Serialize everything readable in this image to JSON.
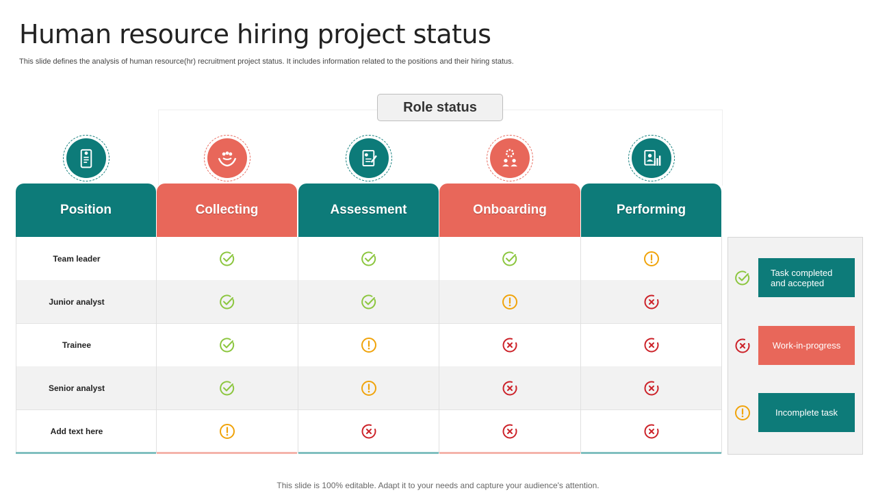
{
  "title": "Human resource hiring project status",
  "subtitle": "This slide defines the analysis of human resource(hr) recruitment project status. It includes information related to the positions and their hiring status.",
  "role_status": "Role status",
  "columns": [
    "Position",
    "Collecting",
    "Assessment",
    "Onboarding",
    "Performing"
  ],
  "column_icons": [
    "mobile-id-icon",
    "hands-people-icon",
    "checklist-form-icon",
    "gear-team-icon",
    "profile-chart-icon"
  ],
  "rows": [
    {
      "label": "Team leader",
      "status": [
        "check",
        "check",
        "check",
        "warn"
      ]
    },
    {
      "label": "Junior analyst",
      "status": [
        "check",
        "check",
        "warn",
        "cross"
      ]
    },
    {
      "label": "Trainee",
      "status": [
        "check",
        "warn",
        "cross",
        "cross"
      ]
    },
    {
      "label": "Senior analyst",
      "status": [
        "check",
        "warn",
        "cross",
        "cross"
      ]
    },
    {
      "label": "Add  text here",
      "status": [
        "warn",
        "cross",
        "cross",
        "cross"
      ]
    }
  ],
  "legend": [
    {
      "icon": "check",
      "label": "Task completed and accepted",
      "color": "#0d7b79"
    },
    {
      "icon": "cross",
      "label": "Work-in-progress",
      "color": "#e8675a"
    },
    {
      "icon": "warn",
      "label": "Incomplete task",
      "color": "#0d7b79"
    }
  ],
  "colors": {
    "teal": "#0d7b79",
    "coral": "#e8675a",
    "check": "#8cc63f",
    "warn": "#f0a30a",
    "cross": "#cc2229"
  },
  "footer": "This slide is 100% editable. Adapt it to your needs and capture your audience's attention."
}
